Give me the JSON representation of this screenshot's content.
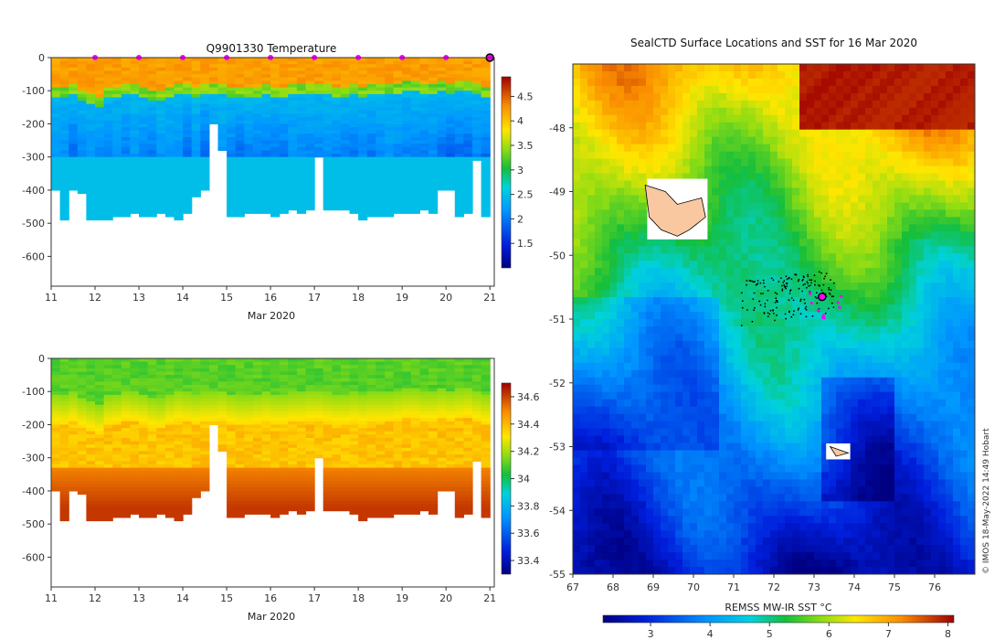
{
  "chart_data": [
    {
      "type": "heatmap",
      "title": "Q9901330  Temperature",
      "variable": "temperature",
      "xlabel": "Mar 2020",
      "ylabel": "",
      "xlim": [
        11,
        21.1
      ],
      "ylim": [
        -690,
        0
      ],
      "x_ticks": [
        11,
        12,
        13,
        14,
        15,
        16,
        17,
        18,
        19,
        20,
        21
      ],
      "y_ticks": [
        0,
        -100,
        -200,
        -300,
        -400,
        -500,
        -600
      ],
      "colorbar": {
        "min": 1.0,
        "max": 4.9,
        "ticks": [
          1.5,
          2,
          2.5,
          3,
          3.5,
          4,
          4.5
        ]
      },
      "profile_markers_x": [
        12,
        13,
        14,
        15,
        16,
        17,
        18,
        19,
        20
      ],
      "current_position_x": 21,
      "profiles": {
        "x_start": [
          11,
          11.2,
          11.4,
          11.6,
          11.8,
          12.0,
          12.2,
          12.4,
          12.6,
          12.8,
          13.0,
          13.2,
          13.4,
          13.6,
          13.8,
          14.0,
          14.2,
          14.4,
          14.6,
          14.8,
          15.0,
          15.2,
          15.4,
          15.6,
          15.8,
          16.0,
          16.2,
          16.4,
          16.6,
          16.8,
          17.0,
          17.2,
          17.4,
          17.6,
          17.8,
          18.0,
          18.2,
          18.4,
          18.6,
          18.8,
          19.0,
          19.2,
          19.4,
          19.6,
          19.8,
          20.0,
          20.2,
          20.4,
          20.6,
          20.8
        ],
        "max_depth": [
          -400,
          -485,
          -400,
          -410,
          -490,
          -488,
          -485,
          -480,
          -475,
          -470,
          -475,
          -475,
          -470,
          -480,
          -485,
          -470,
          -420,
          -400,
          -200,
          -280,
          -480,
          -475,
          -470,
          -468,
          -465,
          -475,
          -465,
          -460,
          -465,
          -460,
          -300,
          -460,
          -455,
          -460,
          -462,
          -485,
          -480,
          -480,
          -475,
          -470,
          -470,
          -465,
          -460,
          -470,
          -400,
          -400,
          -480,
          -470,
          -310,
          -480
        ],
        "thermocline_depth": [
          -90,
          -95,
          -85,
          -100,
          -110,
          -120,
          -95,
          -90,
          -80,
          -85,
          -90,
          -100,
          -105,
          -90,
          -80,
          -85,
          -90,
          -85,
          -85,
          -80,
          -90,
          -95,
          -95,
          -90,
          -85,
          -90,
          -90,
          -85,
          -85,
          -80,
          -80,
          -85,
          -90,
          -90,
          -85,
          -90,
          -85,
          -85,
          -85,
          -80,
          -75,
          -75,
          -80,
          -80,
          -75,
          -80,
          -75,
          -70,
          -80,
          -90
        ]
      }
    },
    {
      "type": "heatmap",
      "title": "",
      "variable": "salinity",
      "xlabel": "Mar 2020",
      "ylabel": "",
      "xlim": [
        11,
        21.1
      ],
      "ylim": [
        -690,
        0
      ],
      "x_ticks": [
        11,
        12,
        13,
        14,
        15,
        16,
        17,
        18,
        19,
        20,
        21
      ],
      "y_ticks": [
        0,
        -100,
        -200,
        -300,
        -400,
        -500,
        -600
      ],
      "colorbar": {
        "min": 33.3,
        "max": 34.7,
        "ticks": [
          33.4,
          33.6,
          33.8,
          34,
          34.2,
          34.4,
          34.6
        ]
      }
    },
    {
      "type": "heatmap",
      "title": "SealCTD Surface Locations and SST for 16 Mar 2020",
      "xlabel": "",
      "ylabel": "",
      "xlim": [
        67,
        77
      ],
      "ylim": [
        -55,
        -47
      ],
      "x_ticks": [
        67,
        68,
        69,
        70,
        71,
        72,
        73,
        74,
        75,
        76
      ],
      "y_ticks": [
        -48,
        -49,
        -50,
        -51,
        -52,
        -53,
        -54,
        -55
      ],
      "colorbar": {
        "label": "REMSS MW-IR SST °C",
        "min": 2.2,
        "max": 8.1,
        "ticks": [
          3,
          4,
          5,
          6,
          7,
          8
        ]
      },
      "current_position": [
        73.2,
        -50.65
      ],
      "credit": "© IMOS 18-May-2022 14:49 Hobart"
    }
  ]
}
